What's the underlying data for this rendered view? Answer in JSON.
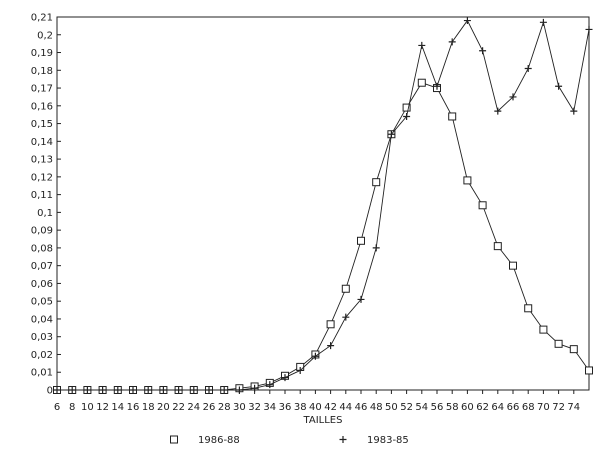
{
  "chart_data": {
    "type": "line",
    "title": "",
    "xlabel": "TAILLES",
    "ylabel": "",
    "xlim": [
      6,
      76
    ],
    "ylim": [
      0,
      0.21
    ],
    "grid": false,
    "legend_position": "bottom",
    "x_ticks": [
      "6",
      "8",
      "10",
      "12",
      "14",
      "16",
      "18",
      "20",
      "22",
      "24",
      "26",
      "28",
      "30",
      "32",
      "34",
      "36",
      "38",
      "40",
      "42",
      "44",
      "46",
      "48",
      "50",
      "52",
      "54",
      "56",
      "58",
      "60",
      "62",
      "64",
      "66",
      "68",
      "70",
      "72",
      "74"
    ],
    "y_ticks": [
      "0",
      "0,01",
      "0,02",
      "0,03",
      "0,04",
      "0,05",
      "0,06",
      "0,07",
      "0,08",
      "0,09",
      "0,1",
      "0,11",
      "0,12",
      "0,13",
      "0,14",
      "0,15",
      "0,16",
      "0,17",
      "0,18",
      "0,19",
      "0,2",
      "0,21"
    ],
    "x": [
      6,
      8,
      10,
      12,
      14,
      16,
      18,
      20,
      22,
      24,
      26,
      28,
      30,
      32,
      34,
      36,
      38,
      40,
      42,
      44,
      46,
      48,
      50,
      52,
      54,
      56,
      58,
      60,
      62,
      64,
      66,
      68,
      70,
      72,
      74,
      76
    ],
    "series": [
      {
        "name": "1986-88",
        "marker": "square",
        "values": [
          0,
          0,
          0,
          0,
          0,
          0,
          0,
          0,
          0,
          0,
          0,
          0,
          0.001,
          0.002,
          0.004,
          0.008,
          0.013,
          0.02,
          0.037,
          0.057,
          0.084,
          0.117,
          0.144,
          0.159,
          0.173,
          0.17,
          0.154,
          0.118,
          0.104,
          0.081,
          0.07,
          0.046,
          0.034,
          0.026,
          0.023,
          0.011
        ]
      },
      {
        "name": "1983-85",
        "marker": "plus",
        "values": [
          0,
          0,
          0,
          0,
          0,
          0,
          0,
          0,
          0,
          0,
          0,
          0,
          0,
          0.001,
          0.003,
          0.007,
          0.011,
          0.019,
          0.025,
          0.041,
          0.051,
          0.08,
          0.144,
          0.154,
          0.194,
          0.171,
          0.196,
          0.208,
          0.191,
          0.157,
          0.165,
          0.181,
          0.207,
          0.171,
          0.157,
          0.203
        ]
      }
    ]
  }
}
